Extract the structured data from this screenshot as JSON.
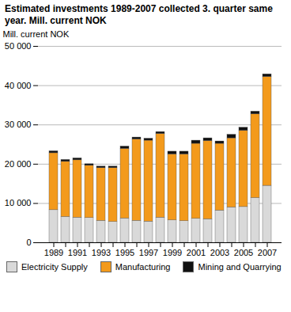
{
  "chart_data": {
    "type": "bar",
    "title": "Estimated investments 1989-2007 collected 3. quarter same year. Mill. current NOK",
    "y_label": "Mill. current NOK",
    "stacked": true,
    "grid": true,
    "legend": "bottom",
    "categories": [
      "1989",
      null,
      "1991",
      null,
      "1993",
      null,
      "1995",
      null,
      "1997",
      null,
      "1999",
      null,
      "2001",
      null,
      "2003",
      null,
      "2005",
      null,
      "2007"
    ],
    "series": [
      {
        "name": "Electricity Supply",
        "color": "#d9d9d9",
        "values": [
          8300,
          6600,
          6400,
          6300,
          5600,
          5300,
          6200,
          5600,
          5400,
          6400,
          5700,
          5500,
          6100,
          6000,
          8200,
          9000,
          9100,
          11400,
          14500
        ]
      },
      {
        "name": "Manufacturing",
        "color": "#f39a1c",
        "values": [
          14500,
          14000,
          14600,
          13300,
          13400,
          13700,
          17700,
          20700,
          20600,
          21300,
          16800,
          17000,
          19100,
          19900,
          17000,
          17600,
          19400,
          21300,
          27700
        ]
      },
      {
        "name": "Mining and Quarrying",
        "color": "#111111",
        "values": [
          500,
          500,
          500,
          400,
          400,
          400,
          600,
          500,
          500,
          500,
          700,
          700,
          800,
          700,
          600,
          900,
          800,
          700,
          700
        ]
      }
    ],
    "ylim": [
      0,
      50000
    ],
    "yticks": [
      0,
      {
        "value": 10000,
        "label": "10 000"
      },
      {
        "value": 20000,
        "label": "20 000"
      },
      {
        "value": 30000,
        "label": "30 000"
      },
      {
        "value": 40000,
        "label": "40 000"
      },
      {
        "value": 50000,
        "label": "50 000"
      }
    ]
  }
}
